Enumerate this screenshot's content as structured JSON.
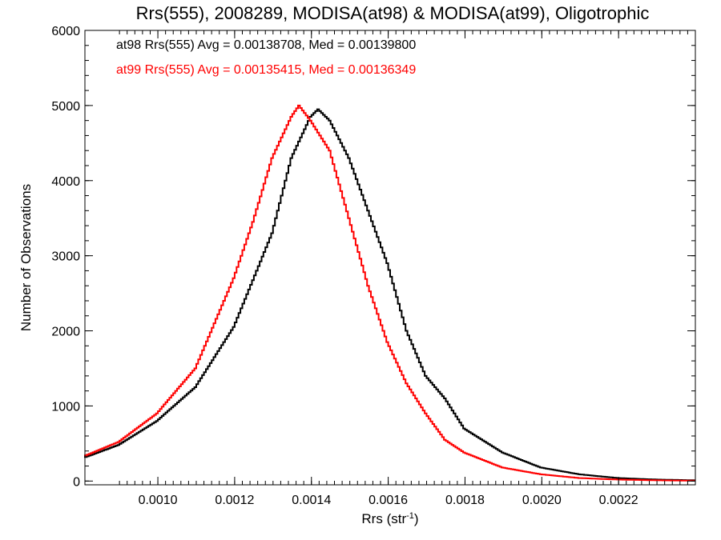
{
  "chart_data": {
    "type": "line",
    "title": "Rrs(555), 2008289, MODISA(at98) & MODISA(at99), Oligotrophic",
    "xlabel_main": "Rrs (str",
    "xlabel_sup": "-1",
    "xlabel_close": ")",
    "ylabel": "Number of Observations",
    "xlim": [
      0.00081,
      0.0024
    ],
    "ylim": [
      -50,
      6000
    ],
    "x_ticks": [
      {
        "value": 0.001,
        "label": "0.0010"
      },
      {
        "value": 0.0012,
        "label": "0.0012"
      },
      {
        "value": 0.0014,
        "label": "0.0014"
      },
      {
        "value": 0.0016,
        "label": "0.0016"
      },
      {
        "value": 0.0018,
        "label": "0.0018"
      },
      {
        "value": 0.002,
        "label": "0.0020"
      },
      {
        "value": 0.0022,
        "label": "0.0022"
      }
    ],
    "y_ticks": [
      {
        "value": 0,
        "label": "0"
      },
      {
        "value": 1000,
        "label": "1000"
      },
      {
        "value": 2000,
        "label": "2000"
      },
      {
        "value": 3000,
        "label": "3000"
      },
      {
        "value": 4000,
        "label": "4000"
      },
      {
        "value": 5000,
        "label": "5000"
      },
      {
        "value": 6000,
        "label": "6000"
      }
    ],
    "grid": false,
    "legend_position": "top-left",
    "legend": [
      {
        "text": "at98 Rrs(555) Avg = 0.00138708, Med = 0.00139800",
        "color": "#000000"
      },
      {
        "text": "at99 Rrs(555) Avg = 0.00135415, Med = 0.00136349",
        "color": "#ff0000"
      }
    ],
    "series": [
      {
        "color": "#000000",
        "step": true,
        "x": [
          0.00081,
          0.0009,
          0.001,
          0.0011,
          0.0012,
          0.0013,
          0.00135,
          0.0014,
          0.00142,
          0.00145,
          0.0015,
          0.00155,
          0.0016,
          0.00165,
          0.0017,
          0.00175,
          0.0018,
          0.0019,
          0.002,
          0.0021,
          0.0022,
          0.0023,
          0.0024
        ],
        "y": [
          310,
          480,
          800,
          1250,
          2050,
          3300,
          4300,
          4850,
          4950,
          4800,
          4300,
          3600,
          2900,
          2000,
          1400,
          1100,
          700,
          380,
          180,
          90,
          40,
          20,
          10
        ]
      },
      {
        "color": "#ff0000",
        "step": true,
        "x": [
          0.00081,
          0.0009,
          0.001,
          0.0011,
          0.0012,
          0.00125,
          0.0013,
          0.00135,
          0.00137,
          0.0014,
          0.00145,
          0.0015,
          0.00155,
          0.0016,
          0.00165,
          0.0017,
          0.00175,
          0.0018,
          0.0019,
          0.002,
          0.0021,
          0.0022,
          0.0023,
          0.0024
        ],
        "y": [
          330,
          520,
          900,
          1500,
          2700,
          3450,
          4300,
          4850,
          5000,
          4800,
          4400,
          3500,
          2600,
          1850,
          1300,
          900,
          550,
          380,
          180,
          90,
          40,
          20,
          10,
          5
        ]
      }
    ]
  }
}
